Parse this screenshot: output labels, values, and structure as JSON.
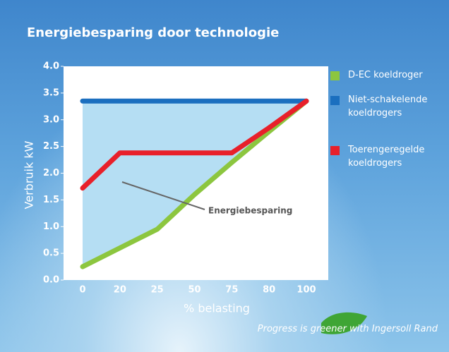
{
  "chart_data": {
    "type": "line",
    "title": "Energiebesparing door technologie",
    "x_label": "% belasting",
    "y_label": "Verbruik kW",
    "categories": [
      "0",
      "20",
      "25",
      "50",
      "75",
      "80",
      "100"
    ],
    "series": [
      {
        "name": "D-EC koeldroger",
        "color": "#8cc63f",
        "values": [
          0.25,
          0.6,
          0.95,
          1.6,
          2.2,
          2.78,
          3.35
        ]
      },
      {
        "name": "Niet-schakelende koeldrogers",
        "color": "#1b6fbf",
        "values": [
          3.35,
          3.35,
          3.35,
          3.35,
          3.35,
          3.35,
          3.35
        ]
      },
      {
        "name": "Toerengeregelde koeldrogers",
        "color": "#e8202a",
        "values": [
          1.72,
          2.38,
          2.38,
          2.38,
          2.38,
          2.85,
          3.35
        ]
      }
    ],
    "area_color": "#b5def3",
    "annotation": "Energiebesparing",
    "ylim": [
      0,
      4
    ],
    "yticks": [
      {
        "value": 0,
        "label": "0.0"
      },
      0.5,
      {
        "value": 1,
        "label": "1.0"
      },
      1.5,
      {
        "value": 2,
        "label": "2.0"
      },
      2.5,
      {
        "value": 3,
        "label": "3.0"
      },
      3.5,
      {
        "value": 4,
        "label": "4.0"
      }
    ],
    "legend": "right",
    "footer": {
      "before": "Progress is",
      "highlight": "greener",
      "after": "with Ingersoll Rand"
    }
  }
}
